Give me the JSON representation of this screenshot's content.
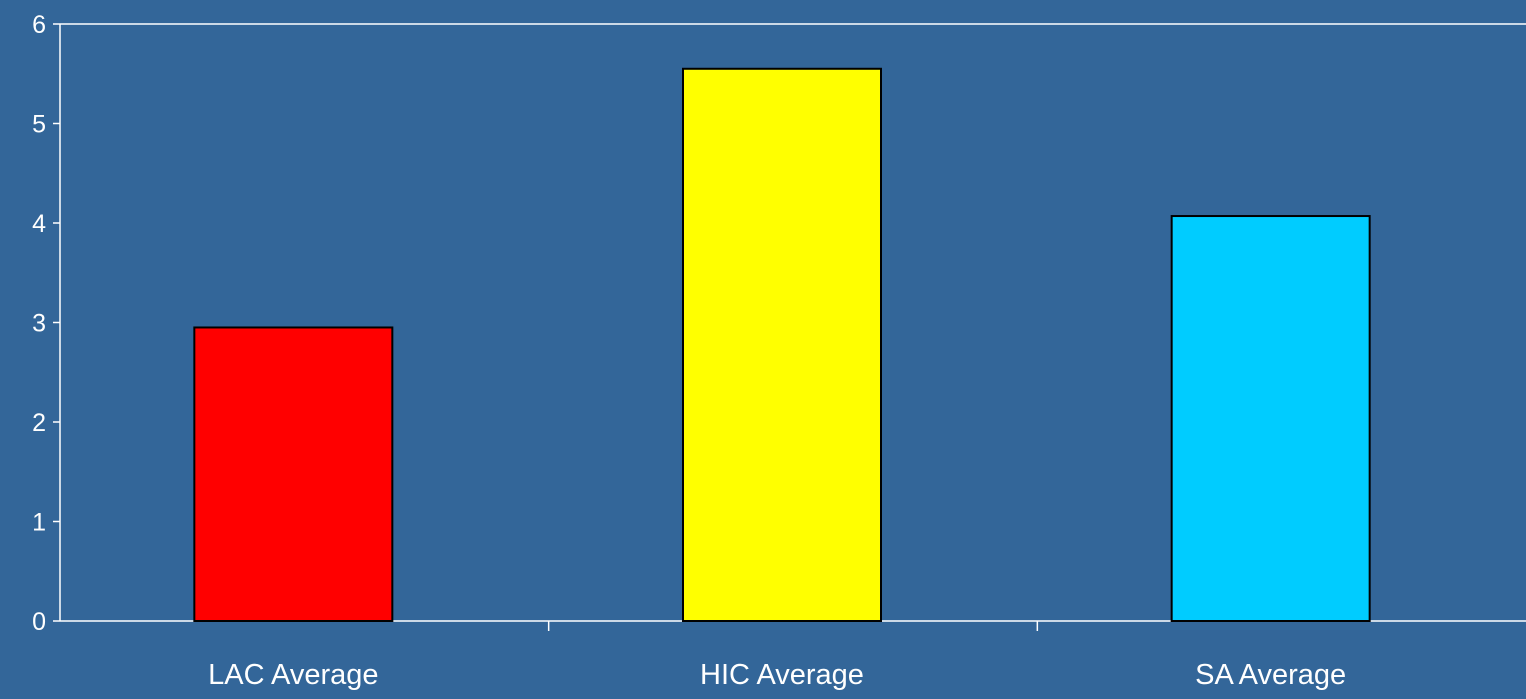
{
  "chart_data": {
    "type": "bar",
    "title": "",
    "xlabel": "",
    "ylabel": "",
    "categories": [
      "LAC Average",
      "HIC Average",
      "SA Average"
    ],
    "values": [
      2.95,
      5.55,
      4.07
    ],
    "bar_colors": [
      "#ff0000",
      "#ffff00",
      "#00ccff"
    ],
    "ylim": [
      0,
      6
    ],
    "yticks": [
      "0",
      "1",
      "2",
      "3",
      "4",
      "5",
      "6"
    ],
    "grid": false,
    "legend": "none"
  },
  "colors": {
    "background": "#336699",
    "axis": "#ffffff",
    "text": "#ffffff",
    "bar_outline": "#000000"
  }
}
